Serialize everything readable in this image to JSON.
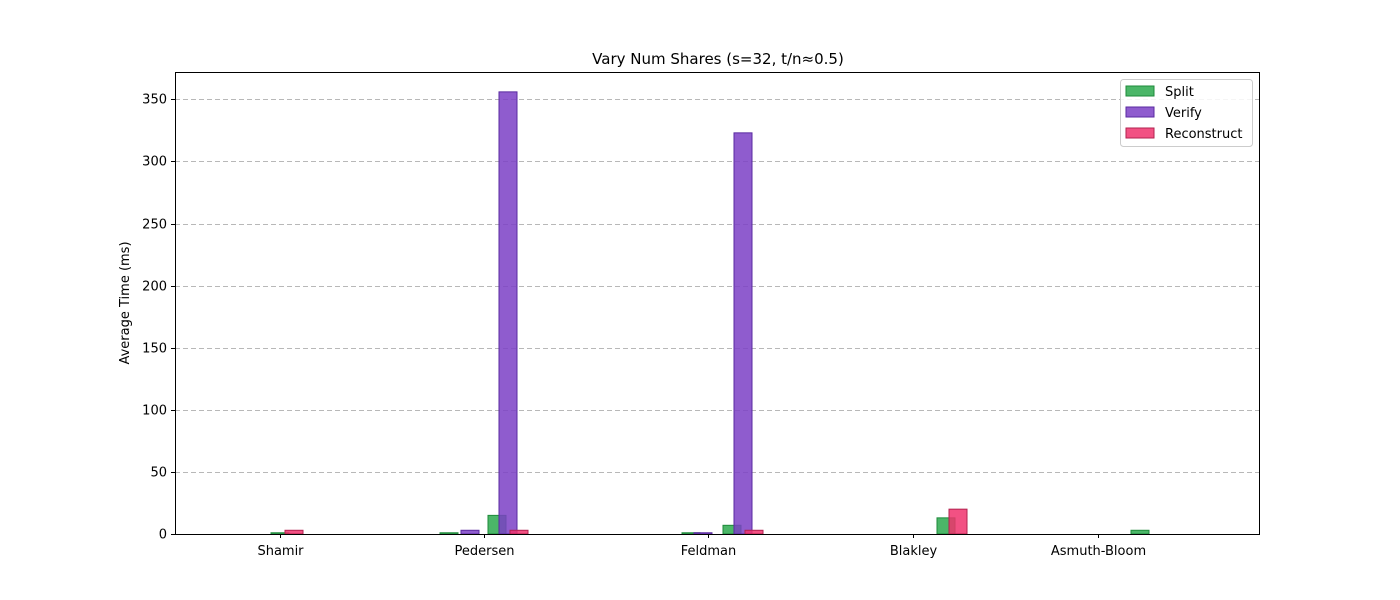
{
  "chart_data": {
    "type": "bar",
    "title": "Vary Num Shares (s=32, t/n≈0.5)",
    "xlabel": "",
    "ylabel": "Average Time (ms)",
    "ylim": [
      0,
      372
    ],
    "yticks": [
      0,
      50,
      100,
      150,
      200,
      250,
      300,
      350
    ],
    "grid": "y-dashed",
    "legend_placement": "top-right",
    "categories": [
      "Shamir",
      "Pedersen",
      "Feldman",
      "Blakley",
      "Asmuth-Bloom"
    ],
    "series": [
      {
        "name": "Split",
        "color": "#2ca94d",
        "edge": "#1e8a3a",
        "bars": [
          {
            "category": "Shamir",
            "offset": 0.0,
            "value": 1
          },
          {
            "category": "Pedersen",
            "offset": -0.35,
            "value": 1
          },
          {
            "category": "Pedersen",
            "offset": 0.13,
            "value": 15
          },
          {
            "category": "Feldman",
            "offset": -0.17,
            "value": 1
          },
          {
            "category": "Feldman",
            "offset": 0.24,
            "value": 7
          },
          {
            "category": "Blakley",
            "offset": 0.33,
            "value": 13
          },
          {
            "category": "Asmuth-Bloom",
            "offset": 0.42,
            "value": 3
          }
        ]
      },
      {
        "name": "Verify",
        "color": "#7b3fc6",
        "edge": "#5a2aa0",
        "bars": [
          {
            "category": "Pedersen",
            "offset": -0.14,
            "value": 3
          },
          {
            "category": "Pedersen",
            "offset": 0.24,
            "value": 356
          },
          {
            "category": "Feldman",
            "offset": -0.05,
            "value": 1
          },
          {
            "category": "Feldman",
            "offset": 0.35,
            "value": 323
          }
        ]
      },
      {
        "name": "Reconstruct",
        "color": "#f0336d",
        "edge": "#b2224f",
        "bars": [
          {
            "category": "Shamir",
            "offset": 0.14,
            "value": 3
          },
          {
            "category": "Pedersen",
            "offset": 0.35,
            "value": 3
          },
          {
            "category": "Feldman",
            "offset": 0.46,
            "value": 3
          },
          {
            "category": "Blakley",
            "offset": 0.45,
            "value": 20
          }
        ]
      }
    ]
  }
}
